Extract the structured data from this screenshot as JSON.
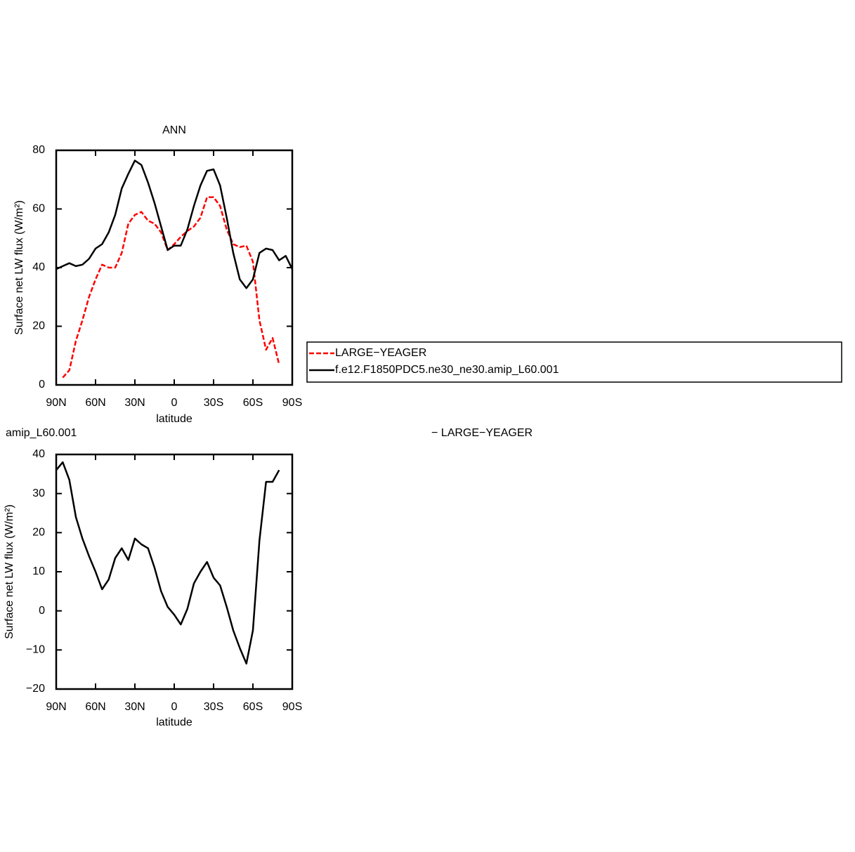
{
  "chart_data": [
    {
      "type": "line",
      "title": "ANN",
      "x_label": "latitude",
      "y_label": "Surface net LW flux (W/m²)",
      "x": [
        90,
        85,
        80,
        75,
        70,
        65,
        60,
        55,
        50,
        45,
        40,
        35,
        30,
        25,
        20,
        15,
        10,
        5,
        0,
        -5,
        -10,
        -15,
        -20,
        -25,
        -30,
        -35,
        -40,
        -45,
        -50,
        -55,
        -60,
        -65,
        -70,
        -75,
        -80,
        -85,
        -90
      ],
      "xlim": [
        90,
        -90
      ],
      "xticks": [
        {
          "value": 90,
          "label": "90N"
        },
        {
          "value": 60,
          "label": "60N"
        },
        {
          "value": 30,
          "label": "30N"
        },
        0,
        {
          "value": -30,
          "label": "30S"
        },
        {
          "value": -60,
          "label": "60S"
        },
        {
          "value": -90,
          "label": "90S"
        }
      ],
      "ylim": [
        0,
        80
      ],
      "yticks": [
        0,
        20,
        40,
        60,
        80
      ],
      "legend": "outside-right",
      "series": [
        {
          "name": "LARGE−YEAGER",
          "color": "#ff0000",
          "dashed": true,
          "values": [
            null,
            2.5,
            5,
            15,
            22,
            30,
            36,
            41,
            40,
            40,
            45,
            55,
            58,
            59,
            56,
            55,
            52,
            46,
            48,
            50.5,
            52.5,
            54,
            57,
            64,
            64,
            61,
            53,
            48,
            47,
            47.5,
            42,
            22,
            12,
            16,
            7,
            null,
            null
          ]
        },
        {
          "name": "f.e12.F1850PDC5.ne30_ne30.amip_L60.001",
          "color": "#000000",
          "dashed": false,
          "values": [
            39.5,
            40.5,
            41.5,
            40.5,
            41,
            43,
            46.5,
            48,
            52,
            58,
            67,
            72,
            76.5,
            75,
            69,
            62,
            54,
            46,
            47.5,
            47.5,
            53,
            61,
            68,
            73,
            73.5,
            68,
            57,
            45,
            36,
            33,
            36,
            45,
            46.5,
            46,
            42.5,
            44,
            39.5
          ]
        }
      ]
    },
    {
      "type": "line",
      "title": "amip_L60.001",
      "annotation": "− LARGE−YEAGER",
      "x_label": "latitude",
      "y_label": "Surface net LW flux (W/m²)",
      "x": [
        90,
        85,
        80,
        75,
        70,
        65,
        60,
        55,
        50,
        45,
        40,
        35,
        30,
        25,
        20,
        15,
        10,
        5,
        0,
        -5,
        -10,
        -15,
        -20,
        -25,
        -30,
        -35,
        -40,
        -45,
        -50,
        -55,
        -60,
        -65,
        -70,
        -75,
        -80,
        -85,
        -90
      ],
      "xlim": [
        90,
        -90
      ],
      "xticks": [
        {
          "value": 90,
          "label": "90N"
        },
        {
          "value": 60,
          "label": "60N"
        },
        {
          "value": 30,
          "label": "30N"
        },
        0,
        {
          "value": -30,
          "label": "30S"
        },
        {
          "value": -60,
          "label": "60S"
        },
        {
          "value": -90,
          "label": "90S"
        }
      ],
      "ylim": [
        -20,
        40
      ],
      "yticks": [
        {
          "value": -20,
          "label": "−20"
        },
        {
          "value": -10,
          "label": "−10"
        },
        0,
        10,
        20,
        30,
        40
      ],
      "series": [
        {
          "color": "#000000",
          "dashed": false,
          "values": [
            36,
            38,
            33.5,
            24,
            18.5,
            14,
            10,
            5.5,
            8,
            13.5,
            16,
            13,
            18.5,
            17,
            16,
            11,
            5,
            1,
            -1,
            -3.5,
            0.5,
            7,
            10,
            12.5,
            8.5,
            6.5,
            1,
            -5,
            -9.5,
            -13.5,
            -5,
            18,
            33,
            33,
            36,
            null,
            null
          ]
        }
      ]
    }
  ]
}
